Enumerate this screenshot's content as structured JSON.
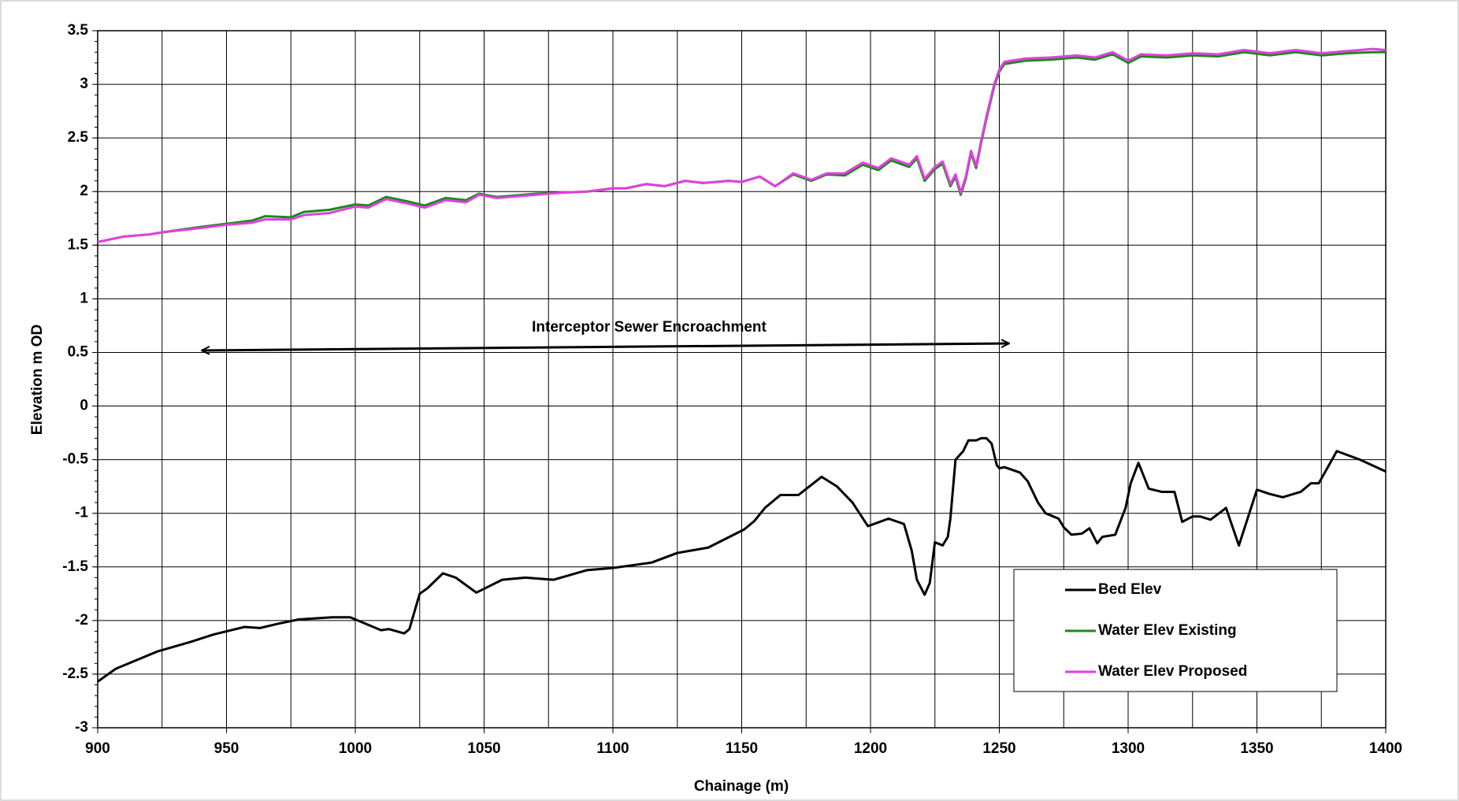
{
  "chart_data": {
    "type": "line",
    "xlabel": "Chainage (m)",
    "ylabel": "Elevation m OD",
    "annotation": "Interceptor Sewer Encroachment",
    "xlim": [
      900,
      1400
    ],
    "xticks": [
      900,
      950,
      1000,
      1050,
      1100,
      1150,
      1200,
      1250,
      1300,
      1350,
      1400
    ],
    "xgrid_minor": [
      925,
      975,
      1025,
      1075,
      1125,
      1175,
      1225,
      1275,
      1325,
      1375
    ],
    "ylim": [
      -3,
      3.5
    ],
    "yticks": [
      -3,
      -2.5,
      -2,
      -1.5,
      -1,
      -0.5,
      0,
      0.5,
      1,
      1.5,
      2,
      2.5,
      3,
      3.5
    ],
    "yminor_step": 0.1,
    "grid": true,
    "legend": "lower right",
    "series": [
      {
        "name": "Bed Elev",
        "color": "#000000",
        "x": [
          900,
          907,
          916,
          923,
          936,
          945,
          957,
          963,
          970,
          978,
          991,
          998,
          1010,
          1013,
          1019,
          1021,
          1025,
          1028,
          1034,
          1039,
          1047,
          1057,
          1066,
          1077,
          1090,
          1100,
          1115,
          1125,
          1137,
          1151,
          1155,
          1159,
          1165,
          1172,
          1181,
          1187,
          1193,
          1199,
          1207,
          1213,
          1216,
          1218,
          1221,
          1223,
          1225,
          1228,
          1230,
          1231,
          1233,
          1236,
          1238,
          1241,
          1243,
          1245,
          1247,
          1249,
          1250,
          1252,
          1258,
          1261,
          1265,
          1268,
          1273,
          1275,
          1278,
          1282,
          1285,
          1288,
          1290,
          1295,
          1299,
          1301,
          1304,
          1308,
          1313,
          1318,
          1321,
          1325,
          1328,
          1332,
          1338,
          1343,
          1350,
          1355,
          1360,
          1367,
          1371,
          1374,
          1378,
          1381,
          1390,
          1400
        ],
        "values": [
          -2.57,
          -2.45,
          -2.36,
          -2.29,
          -2.2,
          -2.13,
          -2.06,
          -2.07,
          -2.03,
          -1.99,
          -1.97,
          -1.97,
          -2.09,
          -2.08,
          -2.12,
          -2.08,
          -1.75,
          -1.7,
          -1.56,
          -1.6,
          -1.74,
          -1.62,
          -1.6,
          -1.62,
          -1.53,
          -1.51,
          -1.46,
          -1.37,
          -1.32,
          -1.15,
          -1.07,
          -0.95,
          -0.83,
          -0.83,
          -0.66,
          -0.75,
          -0.9,
          -1.12,
          -1.05,
          -1.1,
          -1.35,
          -1.62,
          -1.76,
          -1.65,
          -1.27,
          -1.3,
          -1.22,
          -1.05,
          -0.5,
          -0.42,
          -0.32,
          -0.32,
          -0.3,
          -0.3,
          -0.35,
          -0.55,
          -0.58,
          -0.57,
          -0.62,
          -0.7,
          -0.9,
          -1.0,
          -1.05,
          -1.13,
          -1.2,
          -1.19,
          -1.14,
          -1.28,
          -1.22,
          -1.2,
          -0.95,
          -0.72,
          -0.53,
          -0.77,
          -0.8,
          -0.8,
          -1.08,
          -1.03,
          -1.03,
          -1.06,
          -0.95,
          -1.3,
          -0.78,
          -0.82,
          -0.85,
          -0.8,
          -0.72,
          -0.72,
          -0.55,
          -0.42,
          -0.5,
          -0.61
        ]
      },
      {
        "name": "Water Elev Existing",
        "color": "#1a8a1a",
        "x": [
          900,
          910,
          920,
          925,
          940,
          950,
          960,
          965,
          975,
          980,
          990,
          1000,
          1005,
          1012,
          1020,
          1027,
          1035,
          1043,
          1048,
          1055,
          1070,
          1080,
          1090,
          1100,
          1105,
          1113,
          1120,
          1128,
          1135,
          1145,
          1150,
          1157,
          1163,
          1170,
          1177,
          1183,
          1190,
          1197,
          1203,
          1208,
          1215,
          1218,
          1221,
          1225,
          1228,
          1231,
          1233,
          1235,
          1237,
          1239,
          1241,
          1243,
          1245,
          1248,
          1250,
          1252,
          1260,
          1270,
          1280,
          1287,
          1294,
          1300,
          1305,
          1315,
          1325,
          1335,
          1345,
          1355,
          1365,
          1375,
          1385,
          1395,
          1400
        ],
        "values": [
          1.53,
          1.58,
          1.6,
          1.62,
          1.67,
          1.7,
          1.73,
          1.77,
          1.76,
          1.81,
          1.83,
          1.88,
          1.87,
          1.95,
          1.91,
          1.87,
          1.94,
          1.92,
          1.98,
          1.95,
          1.98,
          1.99,
          2.0,
          2.03,
          2.03,
          2.07,
          2.05,
          2.1,
          2.08,
          2.1,
          2.09,
          2.14,
          2.05,
          2.16,
          2.1,
          2.16,
          2.15,
          2.25,
          2.2,
          2.29,
          2.23,
          2.31,
          2.1,
          2.21,
          2.26,
          2.05,
          2.14,
          1.97,
          2.12,
          2.36,
          2.22,
          2.46,
          2.68,
          2.98,
          3.12,
          3.19,
          3.22,
          3.23,
          3.25,
          3.23,
          3.28,
          3.2,
          3.26,
          3.25,
          3.27,
          3.26,
          3.3,
          3.27,
          3.3,
          3.27,
          3.29,
          3.3,
          3.3
        ]
      },
      {
        "name": "Water Elev Proposed",
        "color": "#e040e0",
        "x": [
          900,
          910,
          920,
          925,
          940,
          950,
          960,
          965,
          975,
          980,
          990,
          1000,
          1005,
          1012,
          1020,
          1027,
          1035,
          1043,
          1048,
          1055,
          1070,
          1080,
          1090,
          1100,
          1105,
          1113,
          1120,
          1128,
          1135,
          1145,
          1150,
          1157,
          1163,
          1170,
          1177,
          1183,
          1190,
          1197,
          1203,
          1208,
          1215,
          1218,
          1221,
          1225,
          1228,
          1231,
          1233,
          1235,
          1237,
          1239,
          1241,
          1243,
          1245,
          1248,
          1250,
          1252,
          1260,
          1270,
          1280,
          1287,
          1294,
          1300,
          1305,
          1315,
          1325,
          1335,
          1345,
          1355,
          1365,
          1375,
          1385,
          1395,
          1400
        ],
        "values": [
          1.53,
          1.58,
          1.6,
          1.62,
          1.66,
          1.69,
          1.71,
          1.74,
          1.74,
          1.78,
          1.8,
          1.86,
          1.85,
          1.93,
          1.89,
          1.85,
          1.92,
          1.9,
          1.97,
          1.94,
          1.97,
          1.99,
          2.0,
          2.03,
          2.03,
          2.07,
          2.05,
          2.1,
          2.08,
          2.1,
          2.09,
          2.14,
          2.05,
          2.17,
          2.11,
          2.17,
          2.17,
          2.27,
          2.22,
          2.31,
          2.25,
          2.33,
          2.12,
          2.23,
          2.28,
          2.07,
          2.16,
          1.99,
          2.14,
          2.38,
          2.24,
          2.48,
          2.7,
          3.0,
          3.14,
          3.21,
          3.24,
          3.25,
          3.27,
          3.25,
          3.3,
          3.22,
          3.28,
          3.27,
          3.29,
          3.28,
          3.32,
          3.29,
          3.32,
          3.29,
          3.31,
          3.33,
          3.32
        ]
      }
    ]
  }
}
